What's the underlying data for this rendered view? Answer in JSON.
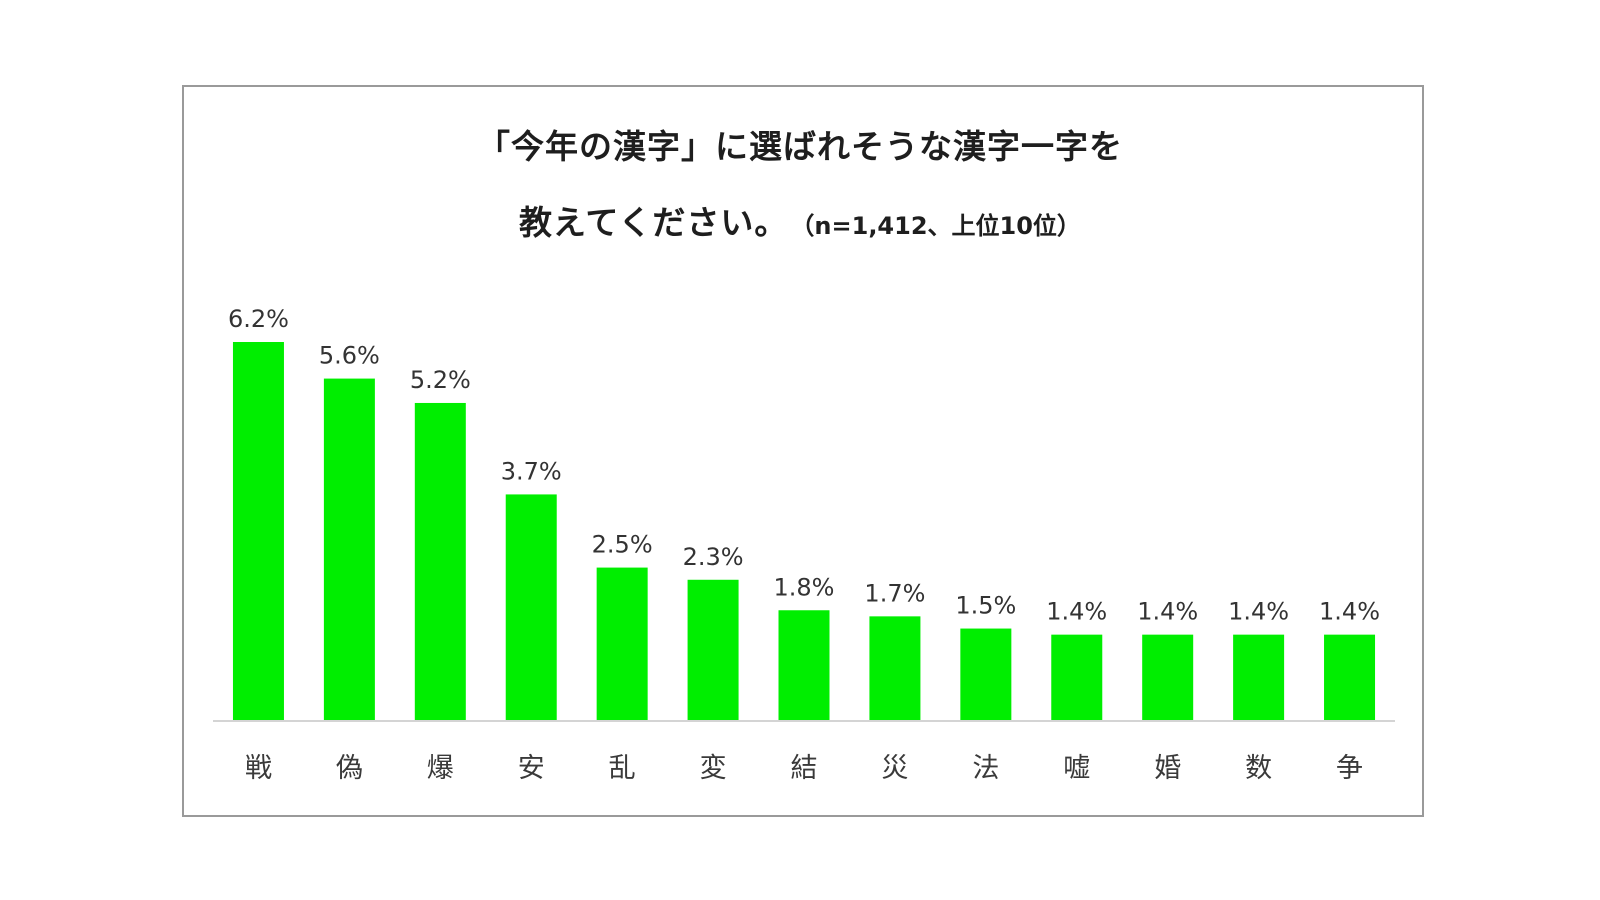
{
  "title": {
    "line1": "「今年の漢字」に選ばれそうな漢字一字を",
    "line2": "教えてください。",
    "note": "（n=1,412、上位10位）"
  },
  "colors": {
    "bar": "#00ee00",
    "baseline": "#d4d4d4",
    "frame": "#9a9a9a"
  },
  "chart_data": {
    "type": "bar",
    "title": "「今年の漢字」に選ばれそうな漢字一字を 教えてください。（n=1,412、上位10位）",
    "xlabel": "",
    "ylabel": "",
    "unit": "%",
    "grid": false,
    "legend": "none",
    "ylim": [
      0,
      6.2
    ],
    "categories": [
      "戦",
      "偽",
      "爆",
      "安",
      "乱",
      "変",
      "結",
      "災",
      "法",
      "嘘",
      "婚",
      "数",
      "争"
    ],
    "values": [
      6.2,
      5.6,
      5.2,
      3.7,
      2.5,
      2.3,
      1.8,
      1.7,
      1.5,
      1.4,
      1.4,
      1.4,
      1.4
    ],
    "data_labels": [
      "6.2%",
      "5.6%",
      "5.2%",
      "3.7%",
      "2.5%",
      "2.3%",
      "1.8%",
      "1.7%",
      "1.5%",
      "1.4%",
      "1.4%",
      "1.4%",
      "1.4%"
    ]
  }
}
